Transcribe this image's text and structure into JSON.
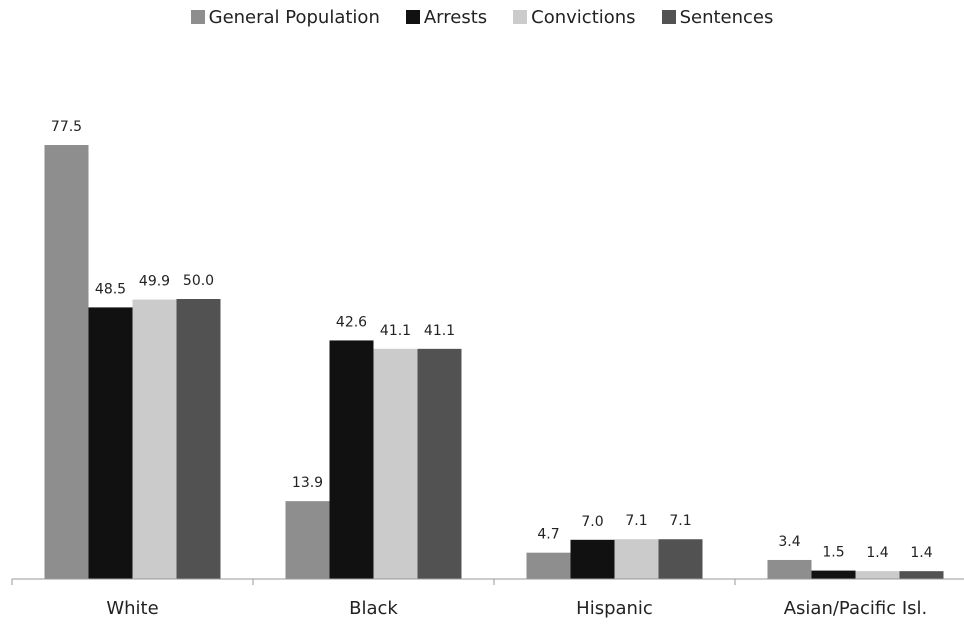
{
  "chart_data": {
    "type": "bar",
    "categories": [
      "White",
      "Black",
      "Hispanic",
      "Asian/Pacific Isl."
    ],
    "series": [
      {
        "name": "General Population",
        "color": "#8e8e8e",
        "values": [
          77.5,
          13.9,
          4.7,
          3.4
        ],
        "labels": [
          "77.5",
          "13.9",
          "4.7",
          "3.4"
        ]
      },
      {
        "name": "Arrests",
        "color": "#111111",
        "values": [
          48.5,
          42.6,
          7.0,
          1.5
        ],
        "labels": [
          "48.5",
          "42.6",
          "7.0",
          "1.5"
        ]
      },
      {
        "name": "Convictions",
        "color": "#cbcbcb",
        "values": [
          49.9,
          41.1,
          7.1,
          1.4
        ],
        "labels": [
          "49.9",
          "41.1",
          "7.1",
          "1.4"
        ]
      },
      {
        "name": "Sentences",
        "color": "#525252",
        "values": [
          50.0,
          41.1,
          7.1,
          1.4
        ],
        "labels": [
          "50.0",
          "41.1",
          "7.1",
          "1.4"
        ]
      }
    ],
    "title": "",
    "xlabel": "",
    "ylabel": "",
    "ylim": [
      0,
      80
    ],
    "legend_position": "top-center",
    "grid": false
  }
}
